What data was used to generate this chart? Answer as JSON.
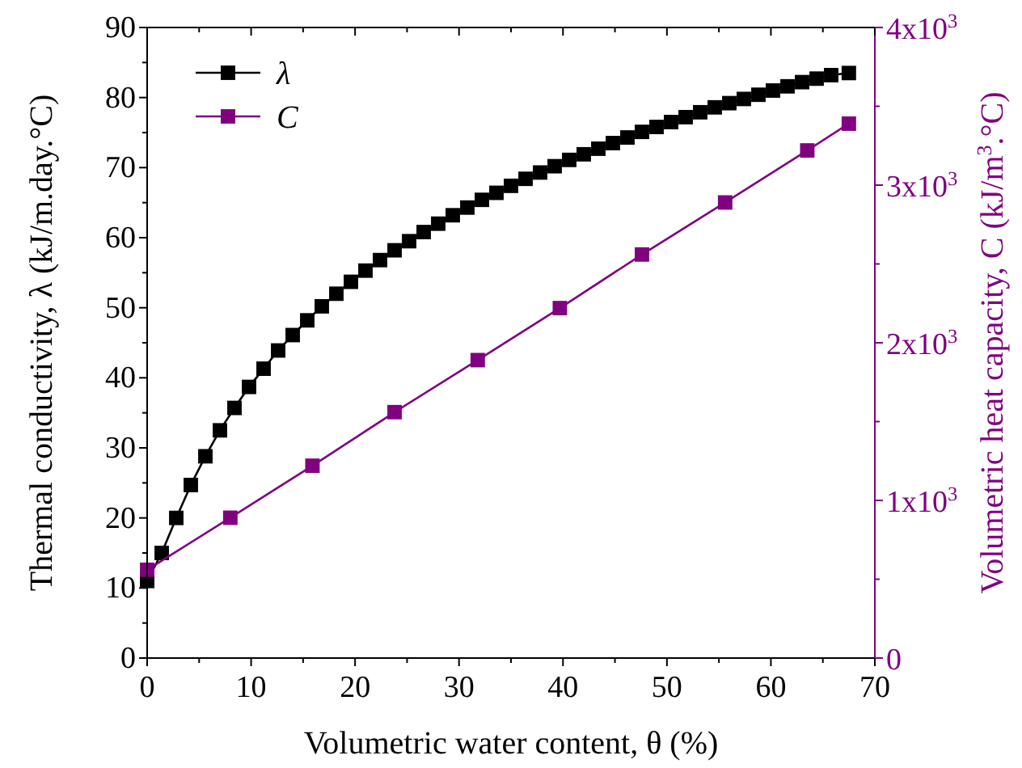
{
  "chart_data": {
    "type": "line",
    "xlabel": "Volumetric water content, θ (%)",
    "ylabel": "Thermal conductivity, λ (kJ/m.day.°C)",
    "y2label": "Volumetric heat capacity, C (kJ/m$^{3}$.°C)",
    "xlim": [
      0,
      70
    ],
    "xticks": [
      0,
      {
        "value": 5,
        "label": null
      },
      10,
      {
        "value": 15,
        "label": null
      },
      20,
      {
        "value": 25,
        "label": null
      },
      30,
      {
        "value": 35,
        "label": null
      },
      40,
      {
        "value": 45,
        "label": null
      },
      50,
      {
        "value": 55,
        "label": null
      },
      60,
      {
        "value": 65,
        "label": null
      },
      70
    ],
    "ylim": [
      0,
      90
    ],
    "yticks": [
      0,
      {
        "value": 5,
        "label": null
      },
      10,
      {
        "value": 15,
        "label": null
      },
      20,
      {
        "value": 25,
        "label": null
      },
      30,
      {
        "value": 35,
        "label": null
      },
      40,
      {
        "value": 45,
        "label": null
      },
      50,
      {
        "value": 55,
        "label": null
      },
      60,
      {
        "value": 65,
        "label": null
      },
      70,
      {
        "value": 75,
        "label": null
      },
      80,
      {
        "value": 85,
        "label": null
      },
      90
    ],
    "y2lim": [
      0,
      4000
    ],
    "y2ticks": [
      {
        "value": 0,
        "label": "0"
      },
      {
        "value": 500,
        "label": null
      },
      {
        "value": 1000,
        "label": "1x10$^{3}$"
      },
      {
        "value": 1500,
        "label": null
      },
      {
        "value": 2000,
        "label": "2x10$^{3}$"
      },
      {
        "value": 2500,
        "label": null
      },
      {
        "value": 3000,
        "label": "3x10$^{3}$"
      },
      {
        "value": 3500,
        "label": null
      },
      {
        "value": 4000,
        "label": "4x10$^{3}$"
      }
    ],
    "legend": "top left",
    "marker": "square",
    "grid": false,
    "series": [
      {
        "name": "λ",
        "color": "#000000",
        "x": [
          0,
          1.4,
          2.8,
          4.2,
          5.6,
          7,
          8.4,
          9.8,
          11.2,
          12.6,
          14,
          15.4,
          16.8,
          18.2,
          19.6,
          21,
          22.4,
          23.8,
          25.2,
          26.6,
          28,
          29.4,
          30.8,
          32.2,
          33.6,
          35,
          36.4,
          37.8,
          39.2,
          40.6,
          42,
          43.4,
          44.8,
          46.2,
          47.6,
          49,
          50.4,
          51.8,
          53.2,
          54.6,
          56,
          57.4,
          58.8,
          60.2,
          61.6,
          63,
          64.4,
          65.8,
          67.5
        ],
        "values": [
          11,
          15,
          20,
          24.7,
          28.8,
          32.5,
          35.7,
          38.7,
          41.3,
          43.9,
          46.1,
          48.2,
          50.2,
          52,
          53.7,
          55.3,
          56.8,
          58.2,
          59.5,
          60.8,
          62,
          63.2,
          64.3,
          65.4,
          66.4,
          67.4,
          68.4,
          69.3,
          70.2,
          71.1,
          71.9,
          72.7,
          73.5,
          74.3,
          75.1,
          75.8,
          76.5,
          77.2,
          77.9,
          78.6,
          79.2,
          79.8,
          80.4,
          81,
          81.6,
          82.2,
          82.7,
          83.2,
          83.5
        ]
      },
      {
        "name": "C",
        "color": "#800080",
        "axis": "y2",
        "x": [
          0,
          8,
          15.9,
          23.8,
          31.8,
          39.7,
          47.6,
          55.6,
          63.5,
          67.5
        ],
        "values": [
          560,
          890,
          1220,
          1560,
          1890,
          2220,
          2560,
          2890,
          3220,
          3390
        ]
      }
    ]
  }
}
